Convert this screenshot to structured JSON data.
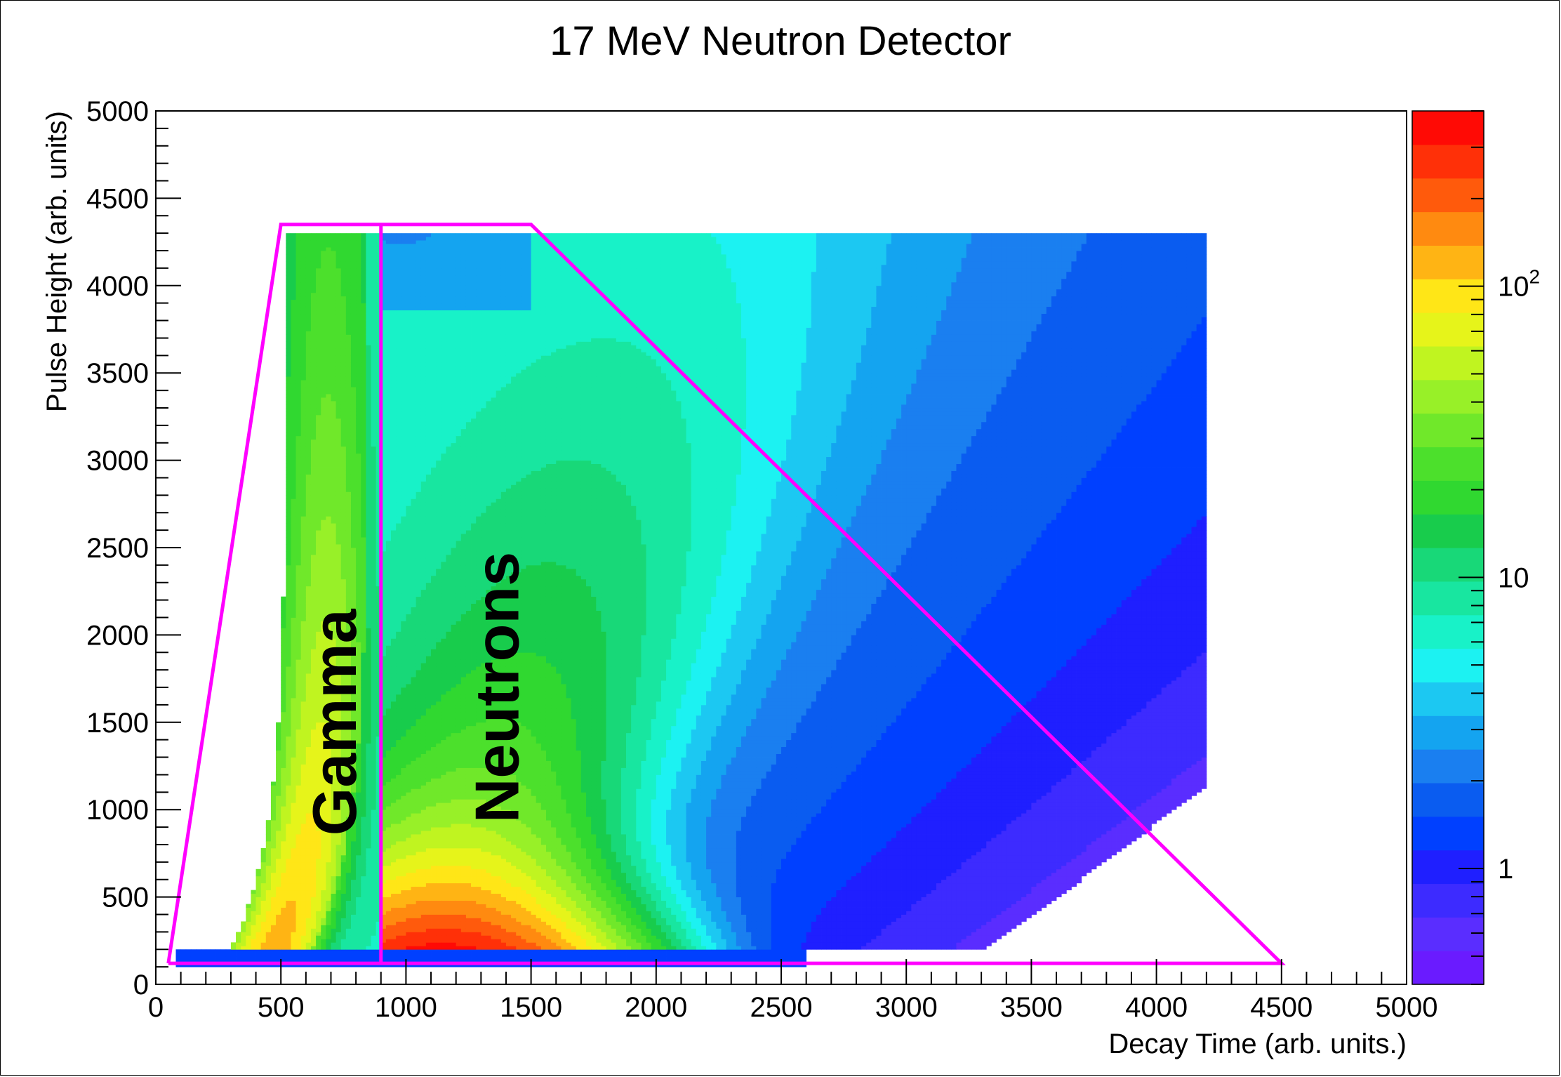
{
  "chart_data": {
    "type": "heatmap",
    "title": "17 MeV Neutron Detector",
    "xlabel": "Decay Time (arb. units.)",
    "ylabel": "Pulse Height (arb. units)",
    "xlim": [
      0,
      5000
    ],
    "ylim": [
      0,
      5000
    ],
    "x_ticks": [
      "0",
      "500",
      "1000",
      "1500",
      "2000",
      "2500",
      "3000",
      "3500",
      "4000",
      "4500",
      "5000"
    ],
    "y_ticks": [
      "0",
      "500",
      "1000",
      "1500",
      "2000",
      "2500",
      "3000",
      "3500",
      "4000",
      "4500",
      "5000"
    ],
    "grid": false,
    "colorbar": {
      "scale": "log",
      "range": [
        0.4,
        400
      ],
      "tick_labels": [
        {
          "base": "1",
          "exp": "",
          "value": 1
        },
        {
          "base": "10",
          "exp": "",
          "value": 10
        },
        {
          "base": "10",
          "exp": "2",
          "value": 100
        }
      ],
      "palette": [
        "#6a1bff",
        "#5a2dff",
        "#3d2bff",
        "#1f1fff",
        "#0040ff",
        "#0a5cf0",
        "#1a7ff0",
        "#14a4f0",
        "#1cc8f2",
        "#1cf2f2",
        "#18f2c8",
        "#18e6a0",
        "#18d878",
        "#18cc4c",
        "#30d830",
        "#4ce02c",
        "#70e82a",
        "#98f028",
        "#c0f420",
        "#e6f41a",
        "#ffe617",
        "#ffb414",
        "#ff8a10",
        "#ff5a0c",
        "#ff3008",
        "#ff0a05"
      ]
    },
    "series": [
      {
        "name": "Gamma",
        "cluster": "gamma band",
        "x_range": [
          550,
          900
        ],
        "y_range": [
          200,
          4300
        ]
      },
      {
        "name": "Neutrons",
        "cluster": "neutron band",
        "x_range": [
          900,
          4200
        ],
        "y_range": [
          200,
          4300
        ]
      }
    ],
    "cut_polygon": {
      "color": "#ff00ff",
      "vertices": [
        [
          50,
          120
        ],
        [
          500,
          4350
        ],
        [
          1500,
          4350
        ],
        [
          4500,
          120
        ],
        [
          50,
          120
        ]
      ],
      "separator": [
        [
          900,
          120
        ],
        [
          900,
          4350
        ]
      ]
    },
    "annotations": [
      {
        "text": "Gamma",
        "x": 710,
        "y": 1500,
        "rotation": -90
      },
      {
        "text": "Neutrons",
        "x": 1360,
        "y": 1700,
        "rotation": -90
      }
    ]
  }
}
